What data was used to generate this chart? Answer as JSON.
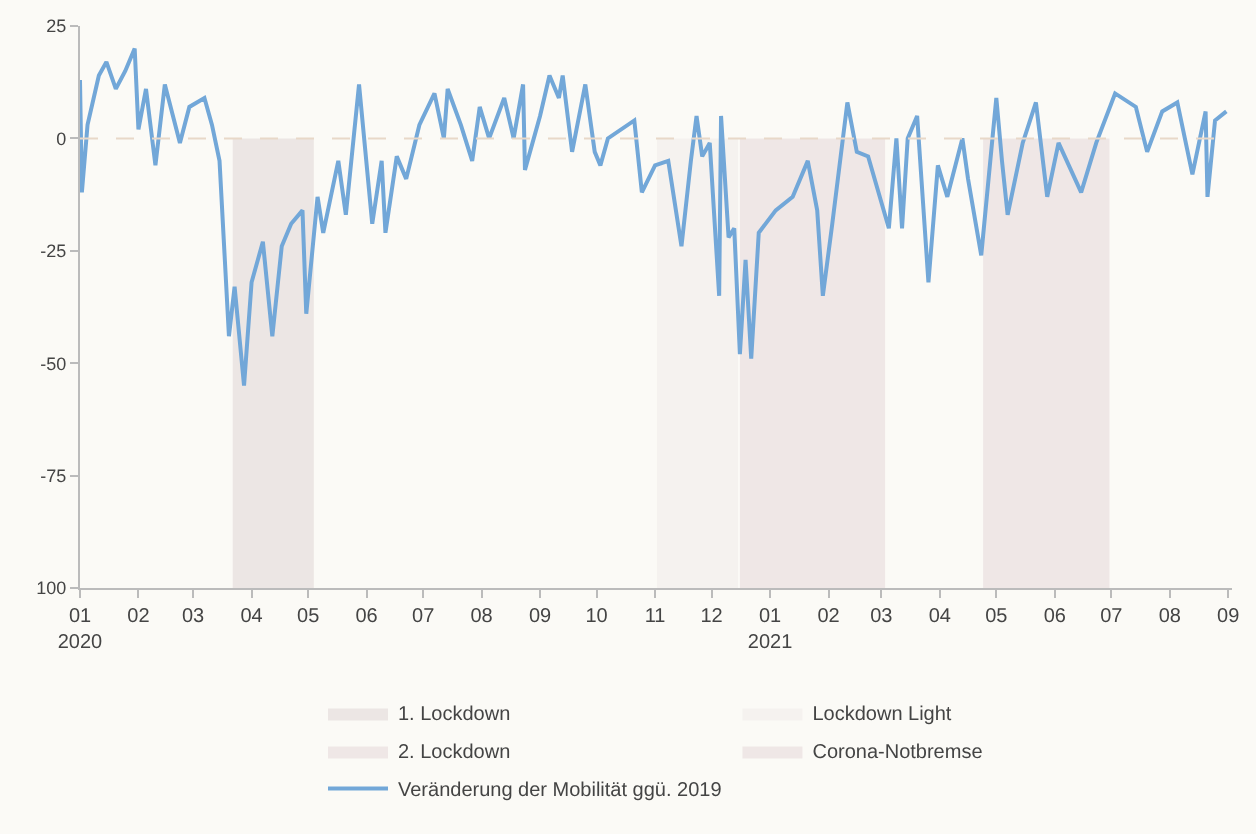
{
  "chart_data": {
    "type": "line",
    "x": [
      "2020-01-01",
      "2020-01-02",
      "2020-01-05",
      "2020-01-11",
      "2020-01-15",
      "2020-01-20",
      "2020-01-25",
      "2020-01-30",
      "2020-02-01",
      "2020-02-05",
      "2020-02-10",
      "2020-02-15",
      "2020-02-23",
      "2020-02-28",
      "2020-03-07",
      "2020-03-11",
      "2020-03-15",
      "2020-03-20",
      "2020-03-23",
      "2020-03-28",
      "2020-04-01",
      "2020-04-07",
      "2020-04-12",
      "2020-04-17",
      "2020-04-22",
      "2020-04-28",
      "2020-04-30",
      "2020-05-06",
      "2020-05-09",
      "2020-05-17",
      "2020-05-21",
      "2020-05-28",
      "2020-06-04",
      "2020-06-09",
      "2020-06-11",
      "2020-06-17",
      "2020-06-22",
      "2020-06-29",
      "2020-07-07",
      "2020-07-12",
      "2020-07-14",
      "2020-07-21",
      "2020-07-27",
      "2020-07-31",
      "2020-08-05",
      "2020-08-13",
      "2020-08-18",
      "2020-08-23",
      "2020-08-24",
      "2020-09-01",
      "2020-09-06",
      "2020-09-11",
      "2020-09-13",
      "2020-09-18",
      "2020-09-25",
      "2020-09-30",
      "2020-10-03",
      "2020-10-07",
      "2020-10-21",
      "2020-10-25",
      "2020-11-01",
      "2020-11-08",
      "2020-11-15",
      "2020-11-20",
      "2020-11-23",
      "2020-11-26",
      "2020-11-30",
      "2020-12-05",
      "2020-12-06",
      "2020-12-10",
      "2020-12-13",
      "2020-12-16",
      "2020-12-19",
      "2020-12-22",
      "2020-12-26",
      "2021-01-04",
      "2021-01-13",
      "2021-01-21",
      "2021-01-26",
      "2021-01-29",
      "2021-02-03",
      "2021-02-11",
      "2021-02-16",
      "2021-02-22",
      "2021-03-05",
      "2021-03-09",
      "2021-03-12",
      "2021-03-15",
      "2021-03-20",
      "2021-03-26",
      "2021-03-31",
      "2021-04-05",
      "2021-04-13",
      "2021-04-16",
      "2021-04-23",
      "2021-05-01",
      "2021-05-04",
      "2021-05-07",
      "2021-05-15",
      "2021-05-22",
      "2021-05-28",
      "2021-06-03",
      "2021-06-15",
      "2021-06-23",
      "2021-07-03",
      "2021-07-14",
      "2021-07-20",
      "2021-07-28",
      "2021-08-05",
      "2021-08-13",
      "2021-08-20",
      "2021-08-21",
      "2021-08-25",
      "2021-08-31"
    ],
    "series": [
      {
        "name": "Veränderung der Mobilität ggü. 2019",
        "color": "#72a7d8",
        "values": [
          13,
          -12,
          3,
          14,
          17,
          11,
          15,
          20,
          2,
          11,
          -6,
          12,
          -1,
          7,
          9,
          3,
          -5,
          -44,
          -33,
          -55,
          -32,
          -23,
          -44,
          -24,
          -19,
          -16,
          -39,
          -13,
          -21,
          -5,
          -17,
          12,
          -19,
          -5,
          -21,
          -4,
          -9,
          3,
          10,
          0,
          11,
          3,
          -5,
          7,
          0,
          9,
          0,
          12,
          -7,
          5,
          14,
          9,
          14,
          -3,
          12,
          -3,
          -6,
          0,
          4,
          -12,
          -6,
          -5,
          -24,
          -5,
          5,
          -4,
          -1,
          -35,
          5,
          -22,
          -20,
          -48,
          -27,
          -49,
          -21,
          -16,
          -13,
          -5,
          -16,
          -35,
          -19,
          8,
          -3,
          -4,
          -20,
          0,
          -20,
          0,
          5,
          -32,
          -6,
          -13,
          0,
          -9,
          -26,
          9,
          -5,
          -17,
          -1,
          8,
          -13,
          -1,
          -12,
          -1,
          10,
          7,
          -3,
          6,
          8,
          -8,
          6,
          -13,
          4,
          6
        ]
      }
    ],
    "xlim": [
      "2020-01-01",
      "2021-09-03"
    ],
    "xticks": [
      {
        "value": "2020-01-01",
        "label": "01\n2020"
      },
      {
        "value": "2020-02-01",
        "label": "02"
      },
      {
        "value": "2020-03-01",
        "label": "03"
      },
      {
        "value": "2020-04-01",
        "label": "04"
      },
      {
        "value": "2020-05-01",
        "label": "05"
      },
      {
        "value": "2020-06-01",
        "label": "06"
      },
      {
        "value": "2020-07-01",
        "label": "07"
      },
      {
        "value": "2020-08-01",
        "label": "08"
      },
      {
        "value": "2020-09-01",
        "label": "09"
      },
      {
        "value": "2020-10-01",
        "label": "10"
      },
      {
        "value": "2020-11-01",
        "label": "11"
      },
      {
        "value": "2020-12-01",
        "label": "12"
      },
      {
        "value": "2021-01-01",
        "label": "01\n2021"
      },
      {
        "value": "2021-02-01",
        "label": "02"
      },
      {
        "value": "2021-03-01",
        "label": "03"
      },
      {
        "value": "2021-04-01",
        "label": "04"
      },
      {
        "value": "2021-05-01",
        "label": "05"
      },
      {
        "value": "2021-06-01",
        "label": "06"
      },
      {
        "value": "2021-07-01",
        "label": "07"
      },
      {
        "value": "2021-08-01",
        "label": "08"
      },
      {
        "value": "2021-09-01",
        "label": "09"
      }
    ],
    "ylim": [
      -100,
      25
    ],
    "yticks": [
      25,
      0,
      -25,
      -50,
      -75,
      {
        "value": -100,
        "label": "100"
      }
    ],
    "ref_lines": [
      {
        "axis": "y",
        "value": 0,
        "color": "#e8d8c8",
        "line_style": "dashed"
      }
    ],
    "bands": [
      {
        "axis": "x",
        "from": "2020-03-22",
        "to": "2020-05-04",
        "label": "1. Lockdown",
        "color": "#ece6e4"
      },
      {
        "axis": "x",
        "from": "2020-11-02",
        "to": "2020-12-15",
        "label": "Lockdown Light",
        "color": "#f5f2ef"
      },
      {
        "axis": "x",
        "from": "2020-12-16",
        "to": "2021-03-03",
        "label": "2. Lockdown",
        "color": "#efe7e6"
      },
      {
        "axis": "x",
        "from": "2021-04-24",
        "to": "2021-06-30",
        "label": "Corona-Notbremse",
        "color": "#efe7e6"
      }
    ],
    "grid": false,
    "legend": "bottom",
    "marker": "none",
    "line_style": "solid"
  }
}
